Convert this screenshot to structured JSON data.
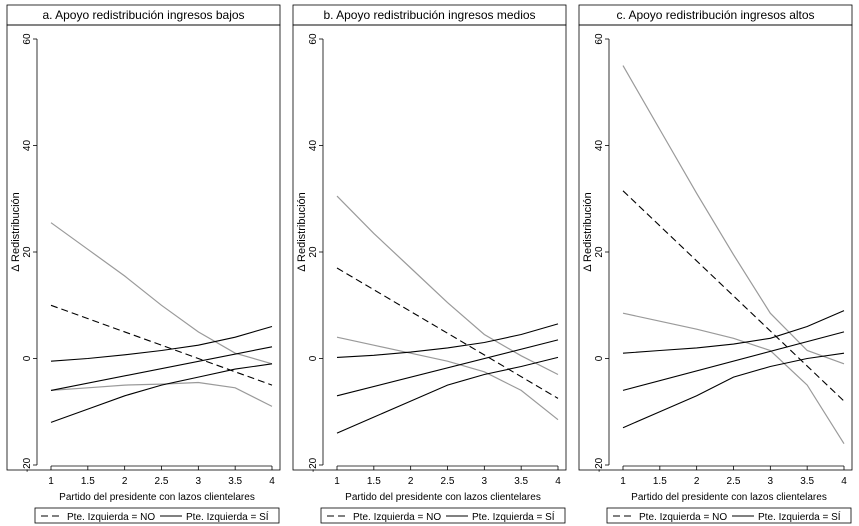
{
  "chart_data": [
    {
      "type": "line",
      "title": "a. Apoyo redistribución ingresos bajos",
      "xlabel": "Partido del presidente con lazos clientelares",
      "ylabel": "Δ Redistribución",
      "xlim": [
        1,
        4
      ],
      "ylim": [
        -20,
        60
      ],
      "x_ticks": [
        "1",
        "1.5",
        "2",
        "2.5",
        "3",
        "3.5",
        "4"
      ],
      "y_ticks": [
        "-20",
        "0",
        "20",
        "40",
        "60"
      ],
      "legend": [
        "Pte. Izquierda = NO",
        "Pte. Izquierda = SÍ"
      ],
      "legend_position": "bottom",
      "grid": false,
      "series": [
        {
          "name": "Pte. Izquierda = NO",
          "style": "dashed",
          "color": "#000000",
          "x": [
            1,
            4
          ],
          "y": [
            10,
            -5
          ]
        },
        {
          "style": "solid",
          "color": "#9a9a9a",
          "x": [
            1,
            1.5,
            2,
            2.5,
            3,
            3.5,
            4
          ],
          "y": [
            25.5,
            20.5,
            15.5,
            10,
            5,
            1,
            -1
          ]
        },
        {
          "style": "solid",
          "color": "#9a9a9a",
          "x": [
            1,
            1.5,
            2,
            2.5,
            3,
            3.5,
            4
          ],
          "y": [
            -6,
            -5.5,
            -5,
            -4.8,
            -4.5,
            -5.5,
            -9
          ]
        },
        {
          "name": "Pte. Izquierda = SÍ",
          "style": "solid",
          "color": "#000000",
          "x": [
            1,
            4
          ],
          "y": [
            -6,
            2.2
          ]
        },
        {
          "style": "solid",
          "color": "#000000",
          "x": [
            1,
            1.5,
            2,
            2.5,
            3,
            3.5,
            4
          ],
          "y": [
            -0.5,
            0,
            0.7,
            1.5,
            2.5,
            4,
            6
          ]
        },
        {
          "style": "solid",
          "color": "#000000",
          "x": [
            1,
            1.5,
            2,
            2.5,
            3,
            3.5,
            4
          ],
          "y": [
            -12,
            -9.5,
            -7,
            -5,
            -3.5,
            -2,
            -1
          ]
        }
      ]
    },
    {
      "type": "line",
      "title": "b. Apoyo redistribución ingresos medios",
      "xlabel": "Partido del presidente con lazos clientelares",
      "ylabel": "Δ Redistribución",
      "xlim": [
        1,
        4
      ],
      "ylim": [
        -20,
        60
      ],
      "x_ticks": [
        "1",
        "1.5",
        "2",
        "2.5",
        "3",
        "3.5",
        "4"
      ],
      "y_ticks": [
        "-20",
        "0",
        "20",
        "40",
        "60"
      ],
      "legend": [
        "Pte. Izquierda = NO",
        "Pte. Izquierda = SÍ"
      ],
      "legend_position": "bottom",
      "grid": false,
      "series": [
        {
          "name": "Pte. Izquierda = NO",
          "style": "dashed",
          "color": "#000000",
          "x": [
            1,
            4
          ],
          "y": [
            17,
            -7.5
          ]
        },
        {
          "style": "solid",
          "color": "#9a9a9a",
          "x": [
            1,
            1.5,
            2,
            2.5,
            3,
            3.5,
            4
          ],
          "y": [
            30.5,
            23.5,
            17,
            10.5,
            4.5,
            0.5,
            -3
          ]
        },
        {
          "style": "solid",
          "color": "#9a9a9a",
          "x": [
            1,
            1.5,
            2,
            2.5,
            3,
            3.5,
            4
          ],
          "y": [
            4,
            2.5,
            1,
            -0.5,
            -2.5,
            -6,
            -11.5
          ]
        },
        {
          "name": "Pte. Izquierda = SÍ",
          "style": "solid",
          "color": "#000000",
          "x": [
            1,
            4
          ],
          "y": [
            -7,
            3.5
          ]
        },
        {
          "style": "solid",
          "color": "#000000",
          "x": [
            1,
            1.5,
            2,
            2.5,
            3,
            3.5,
            4
          ],
          "y": [
            0.2,
            0.6,
            1.2,
            2,
            3,
            4.5,
            6.5
          ]
        },
        {
          "style": "solid",
          "color": "#000000",
          "x": [
            1,
            1.5,
            2,
            2.5,
            3,
            3.5,
            4
          ],
          "y": [
            -14,
            -11,
            -8,
            -5,
            -3,
            -1.5,
            0.2
          ]
        }
      ]
    },
    {
      "type": "line",
      "title": "c. Apoyo redistribución ingresos altos",
      "xlabel": "Partido del presidente con lazos clientelares",
      "ylabel": "Δ Redistribución",
      "xlim": [
        1,
        4
      ],
      "ylim": [
        -20,
        60
      ],
      "x_ticks": [
        "1",
        "1.5",
        "2",
        "2.5",
        "3",
        "3.5",
        "4"
      ],
      "y_ticks": [
        "-20",
        "0",
        "20",
        "40",
        "60"
      ],
      "legend": [
        "Pte. Izquierda = NO",
        "Pte. Izquierda = SÍ"
      ],
      "legend_position": "bottom",
      "grid": false,
      "series": [
        {
          "name": "Pte. Izquierda = NO",
          "style": "dashed",
          "color": "#000000",
          "x": [
            1,
            4
          ],
          "y": [
            31.5,
            -8
          ]
        },
        {
          "style": "solid",
          "color": "#9a9a9a",
          "x": [
            1,
            1.5,
            2,
            2.5,
            3,
            3.5,
            4
          ],
          "y": [
            55,
            43,
            31,
            19.5,
            8.5,
            1.5,
            -1
          ]
        },
        {
          "style": "solid",
          "color": "#9a9a9a",
          "x": [
            1,
            1.5,
            2,
            2.5,
            3,
            3.5,
            4
          ],
          "y": [
            8.5,
            7,
            5.5,
            3.8,
            1.5,
            -5,
            -16
          ]
        },
        {
          "name": "Pte. Izquierda = SÍ",
          "style": "solid",
          "color": "#000000",
          "x": [
            1,
            4
          ],
          "y": [
            -6,
            5
          ]
        },
        {
          "style": "solid",
          "color": "#000000",
          "x": [
            1,
            1.5,
            2,
            2.5,
            3,
            3.5,
            4
          ],
          "y": [
            1,
            1.5,
            2,
            2.7,
            3.8,
            6,
            9
          ]
        },
        {
          "style": "solid",
          "color": "#000000",
          "x": [
            1,
            1.5,
            2,
            2.5,
            3,
            3.5,
            4
          ],
          "y": [
            -13,
            -10,
            -7,
            -3.5,
            -1.5,
            0,
            1
          ]
        }
      ]
    }
  ]
}
